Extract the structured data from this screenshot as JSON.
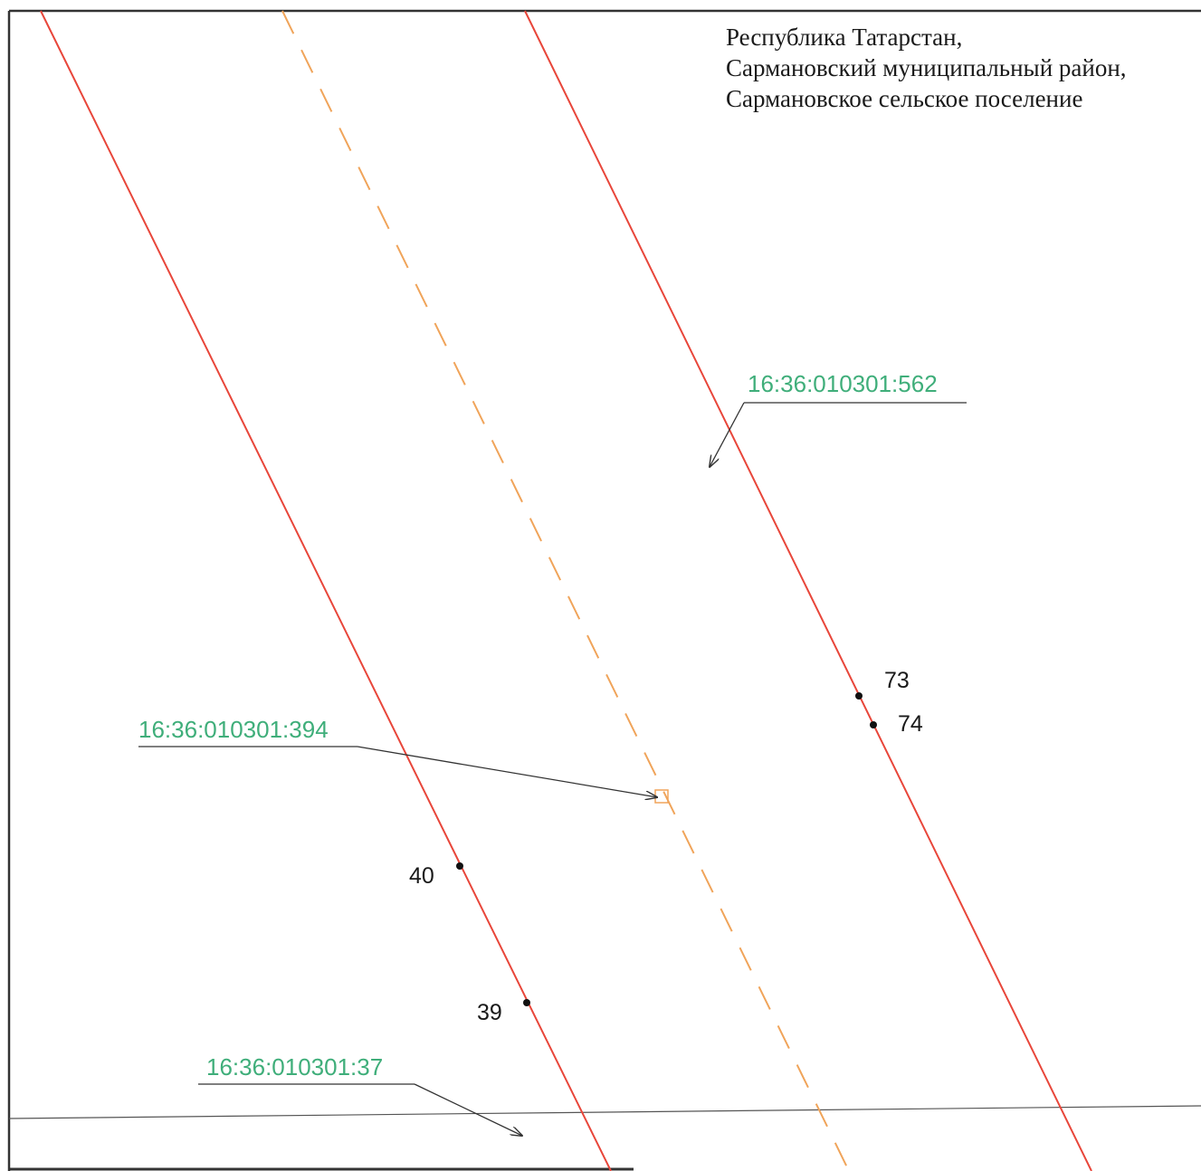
{
  "address": {
    "lines": [
      "Республика Татарстан,",
      "Сармановский муниципальный район,",
      "Сармановское сельское поселение"
    ]
  },
  "parcels": [
    {
      "id": "16:36:010301:562"
    },
    {
      "id": "16:36:010301:394"
    },
    {
      "id": "16:36:010301:37"
    }
  ],
  "points": [
    {
      "label": "73"
    },
    {
      "label": "74"
    },
    {
      "label": "40"
    },
    {
      "label": "39"
    }
  ],
  "colors": {
    "boundary": "#e8463a",
    "centerline": "#f0a45a",
    "parcel_label": "#3fae7a",
    "frame": "#333333",
    "leader": "#333333"
  }
}
